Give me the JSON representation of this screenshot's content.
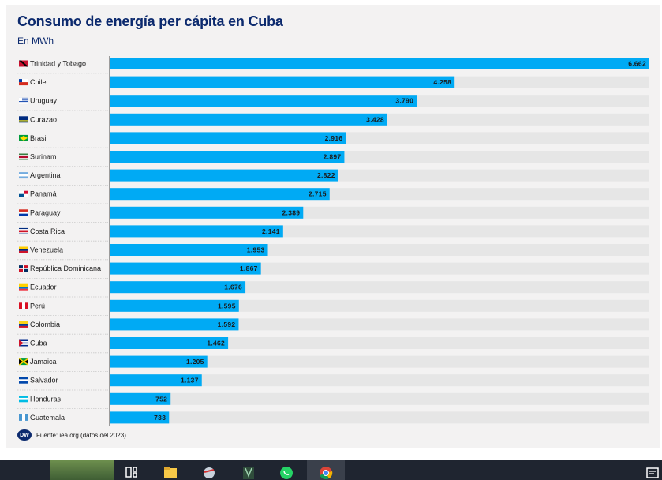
{
  "chart_data": {
    "type": "bar",
    "orientation": "horizontal",
    "title": "Consumo de energía per cápita en Cuba",
    "subtitle": "En MWh",
    "source": "Fuente: iea.org (datos del 2023)",
    "brand": "DW",
    "xlim": [
      0,
      6662
    ],
    "categories": [
      "Trinidad y Tobago",
      "Chile",
      "Uruguay",
      "Curazao",
      "Brasil",
      "Surinam",
      "Argentina",
      "Panamá",
      "Paraguay",
      "Costa Rica",
      "Venezuela",
      "República Dominicana",
      "Ecuador",
      "Perú",
      "Colombia",
      "Cuba",
      "Jamaica",
      "Salvador",
      "Honduras",
      "Guatemala"
    ],
    "values": [
      6662,
      4258,
      3790,
      3428,
      2916,
      2897,
      2822,
      2715,
      2389,
      2141,
      1953,
      1867,
      1676,
      1595,
      1592,
      1462,
      1205,
      1137,
      752,
      733
    ],
    "labels": [
      "6.662",
      "4.258",
      "3.790",
      "3.428",
      "2.916",
      "2.897",
      "2.822",
      "2.715",
      "2.389",
      "2.141",
      "1.953",
      "1.867",
      "1.676",
      "1.595",
      "1.592",
      "1.462",
      "1.205",
      "1.137",
      "752",
      "733"
    ],
    "colors": {
      "bar": "#00aaf4",
      "track": "#e6e6e6",
      "title": "#0c2a6e",
      "label": "#1a1a1a"
    }
  }
}
